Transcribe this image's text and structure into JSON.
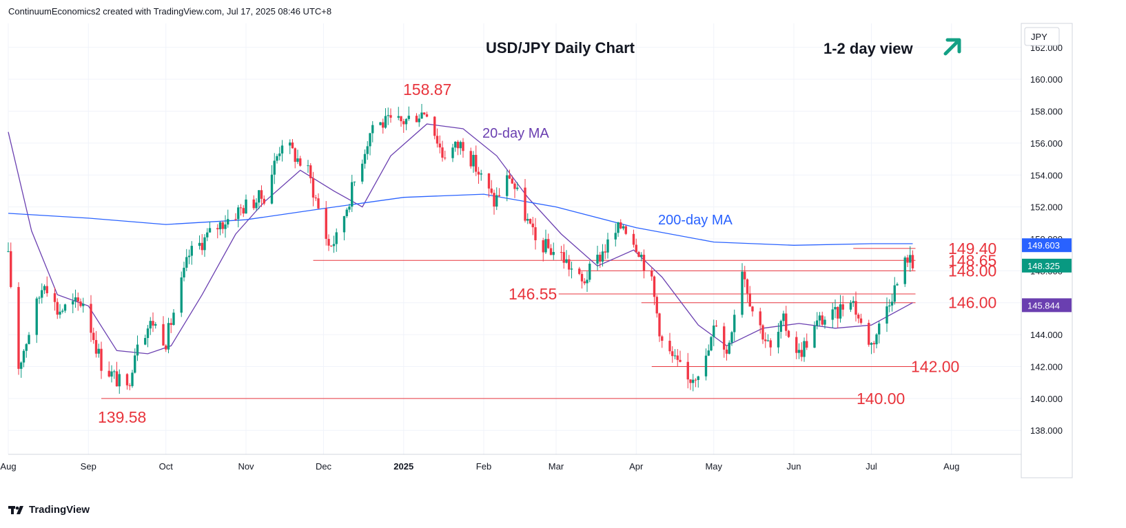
{
  "header": {
    "attribution": "ContinuumEconomics2 created with TradingView.com, Jul 17, 2025 08:46 UTC+8"
  },
  "footer": {
    "logo_text": "TradingView"
  },
  "colors": {
    "up": "#089981",
    "down": "#f23645",
    "ma20": "#6a3fb0",
    "ma200": "#2962ff",
    "level": "#e8343c",
    "arrow": "#13a085"
  },
  "chart_data": {
    "type": "candlestick",
    "title": "USD/JPY Daily Chart",
    "view_label": "1-2 day view",
    "view_icon": "arrow-up-right-icon",
    "currency": "JPY",
    "ylim": [
      136.5,
      163.5
    ],
    "y_ticks": [
      138,
      140,
      142,
      144,
      146,
      148,
      150,
      152,
      154,
      156,
      158,
      160,
      162
    ],
    "y_tick_labels": [
      "138.000",
      "140.000",
      "142.000",
      "144.000",
      "146.000",
      "148.000",
      "150.000",
      "152.000",
      "154.000",
      "156.000",
      "158.000",
      "160.000",
      "162.000"
    ],
    "x_range": [
      "2024-08-01",
      "2025-08-28"
    ],
    "x_ticks": [
      {
        "date": "2024-08-01",
        "label": "Aug"
      },
      {
        "date": "2024-09-01",
        "label": "Sep"
      },
      {
        "date": "2024-10-01",
        "label": "Oct"
      },
      {
        "date": "2024-11-01",
        "label": "Nov"
      },
      {
        "date": "2024-12-01",
        "label": "Dec"
      },
      {
        "date": "2025-01-01",
        "label": "2025"
      },
      {
        "date": "2025-02-01",
        "label": "Feb"
      },
      {
        "date": "2025-03-01",
        "label": "Mar"
      },
      {
        "date": "2025-04-01",
        "label": "Apr"
      },
      {
        "date": "2025-05-01",
        "label": "May"
      },
      {
        "date": "2025-06-01",
        "label": "Jun"
      },
      {
        "date": "2025-07-01",
        "label": "Jul"
      },
      {
        "date": "2025-08-01",
        "label": "Aug"
      }
    ],
    "price_anchors": [
      [
        "2024-08-01",
        148.8
      ],
      [
        "2024-08-05",
        142.0
      ],
      [
        "2024-08-15",
        147.5
      ],
      [
        "2024-08-20",
        145.5
      ],
      [
        "2024-08-30",
        146.1
      ],
      [
        "2024-09-06",
        142.2
      ],
      [
        "2024-09-16",
        140.5
      ],
      [
        "2024-09-20",
        143.8
      ],
      [
        "2024-09-26",
        144.8
      ],
      [
        "2024-10-01",
        143.6
      ],
      [
        "2024-10-10",
        149.0
      ],
      [
        "2024-10-21",
        150.8
      ],
      [
        "2024-10-31",
        152.0
      ],
      [
        "2024-11-08",
        152.7
      ],
      [
        "2024-11-15",
        156.2
      ],
      [
        "2024-11-25",
        154.2
      ],
      [
        "2024-12-03",
        149.6
      ],
      [
        "2024-12-06",
        150.0
      ],
      [
        "2024-12-13",
        153.6
      ],
      [
        "2024-12-20",
        157.2
      ],
      [
        "2024-12-31",
        157.3
      ],
      [
        "2025-01-10",
        158.1
      ],
      [
        "2025-01-16",
        155.3
      ],
      [
        "2025-01-24",
        156.0
      ],
      [
        "2025-02-05",
        152.3
      ],
      [
        "2025-02-11",
        154.0
      ],
      [
        "2025-02-21",
        149.8
      ],
      [
        "2025-03-03",
        149.0
      ],
      [
        "2025-03-11",
        147.2
      ],
      [
        "2025-03-19",
        149.2
      ],
      [
        "2025-03-27",
        151.0
      ],
      [
        "2025-04-02",
        149.4
      ],
      [
        "2025-04-07",
        147.2
      ],
      [
        "2025-04-11",
        143.5
      ],
      [
        "2025-04-21",
        141.1
      ],
      [
        "2025-04-28",
        142.4
      ],
      [
        "2025-05-02",
        144.9
      ],
      [
        "2025-05-06",
        142.8
      ],
      [
        "2025-05-12",
        148.3
      ],
      [
        "2025-05-16",
        145.6
      ],
      [
        "2025-05-23",
        143.0
      ],
      [
        "2025-05-28",
        144.8
      ],
      [
        "2025-06-03",
        142.8
      ],
      [
        "2025-06-11",
        144.9
      ],
      [
        "2025-06-17",
        145.2
      ],
      [
        "2025-06-23",
        146.5
      ],
      [
        "2025-06-27",
        144.6
      ],
      [
        "2025-07-01",
        143.4
      ],
      [
        "2025-07-04",
        144.5
      ],
      [
        "2025-07-08",
        146.3
      ],
      [
        "2025-07-11",
        147.2
      ],
      [
        "2025-07-15",
        148.9
      ],
      [
        "2025-07-16",
        148.6
      ],
      [
        "2025-07-17",
        148.3
      ]
    ],
    "series": [
      {
        "name": "20-day MA",
        "points": [
          [
            "2024-08-01",
            156.7
          ],
          [
            "2024-08-10",
            150.5
          ],
          [
            "2024-08-20",
            146.5
          ],
          [
            "2024-09-01",
            145.8
          ],
          [
            "2024-09-12",
            143.0
          ],
          [
            "2024-09-24",
            142.8
          ],
          [
            "2024-10-03",
            143.3
          ],
          [
            "2024-10-15",
            146.5
          ],
          [
            "2024-10-28",
            150.3
          ],
          [
            "2024-11-08",
            152.3
          ],
          [
            "2024-11-22",
            154.3
          ],
          [
            "2024-12-05",
            153.0
          ],
          [
            "2024-12-16",
            152.0
          ],
          [
            "2024-12-27",
            155.2
          ],
          [
            "2025-01-10",
            157.2
          ],
          [
            "2025-01-24",
            156.9
          ],
          [
            "2025-02-06",
            155.2
          ],
          [
            "2025-02-18",
            152.6
          ],
          [
            "2025-03-03",
            150.3
          ],
          [
            "2025-03-17",
            148.3
          ],
          [
            "2025-03-31",
            149.3
          ],
          [
            "2025-04-11",
            147.6
          ],
          [
            "2025-04-25",
            144.6
          ],
          [
            "2025-05-06",
            143.3
          ],
          [
            "2025-05-20",
            144.4
          ],
          [
            "2025-06-03",
            144.7
          ],
          [
            "2025-06-17",
            144.4
          ],
          [
            "2025-07-01",
            144.6
          ],
          [
            "2025-07-17",
            146.0
          ]
        ]
      },
      {
        "name": "200-day MA",
        "points": [
          [
            "2024-08-01",
            151.6
          ],
          [
            "2024-09-01",
            151.3
          ],
          [
            "2024-10-01",
            150.9
          ],
          [
            "2024-11-01",
            151.2
          ],
          [
            "2024-12-01",
            151.9
          ],
          [
            "2025-01-01",
            152.6
          ],
          [
            "2025-02-01",
            152.8
          ],
          [
            "2025-03-01",
            152.0
          ],
          [
            "2025-04-01",
            150.7
          ],
          [
            "2025-05-01",
            149.8
          ],
          [
            "2025-06-01",
            149.6
          ],
          [
            "2025-07-01",
            149.7
          ],
          [
            "2025-07-17",
            149.7
          ]
        ]
      }
    ],
    "levels": [
      {
        "value": 140.0,
        "label": "140.00",
        "from": "2024-09-06",
        "to": "2025-06-28"
      },
      {
        "value": 142.0,
        "label": "142.00",
        "from": "2025-04-07",
        "to": "2025-07-17"
      },
      {
        "value": 146.0,
        "label": "146.00",
        "from": "2025-04-03",
        "to": "2025-07-17"
      },
      {
        "value": 146.55,
        "label": "146.55",
        "from": "2025-03-02",
        "to": "2025-07-17"
      },
      {
        "value": 148.0,
        "label": "148.00",
        "from": "2025-03-10",
        "to": "2025-07-17"
      },
      {
        "value": 148.65,
        "label": "148.65",
        "from": "2024-11-27",
        "to": "2025-07-17"
      },
      {
        "value": 149.4,
        "label": "149.40",
        "from": "2025-06-24",
        "to": "2025-07-17"
      }
    ],
    "annotations": [
      {
        "text": "158.87",
        "date": "2025-01-10",
        "value": 158.87
      },
      {
        "text": "139.58",
        "date": "2024-09-16",
        "value": 139.58
      }
    ],
    "ma_labels": {
      "ma20": "20-day MA",
      "ma200": "200-day MA"
    },
    "price_badges": [
      {
        "value": 149.603,
        "label": "149.603",
        "color": "#2962ff"
      },
      {
        "value": 148.325,
        "label": "148.325",
        "color": "#089981"
      },
      {
        "value": 145.844,
        "label": "145.844",
        "color": "#6a3fb0"
      }
    ]
  }
}
